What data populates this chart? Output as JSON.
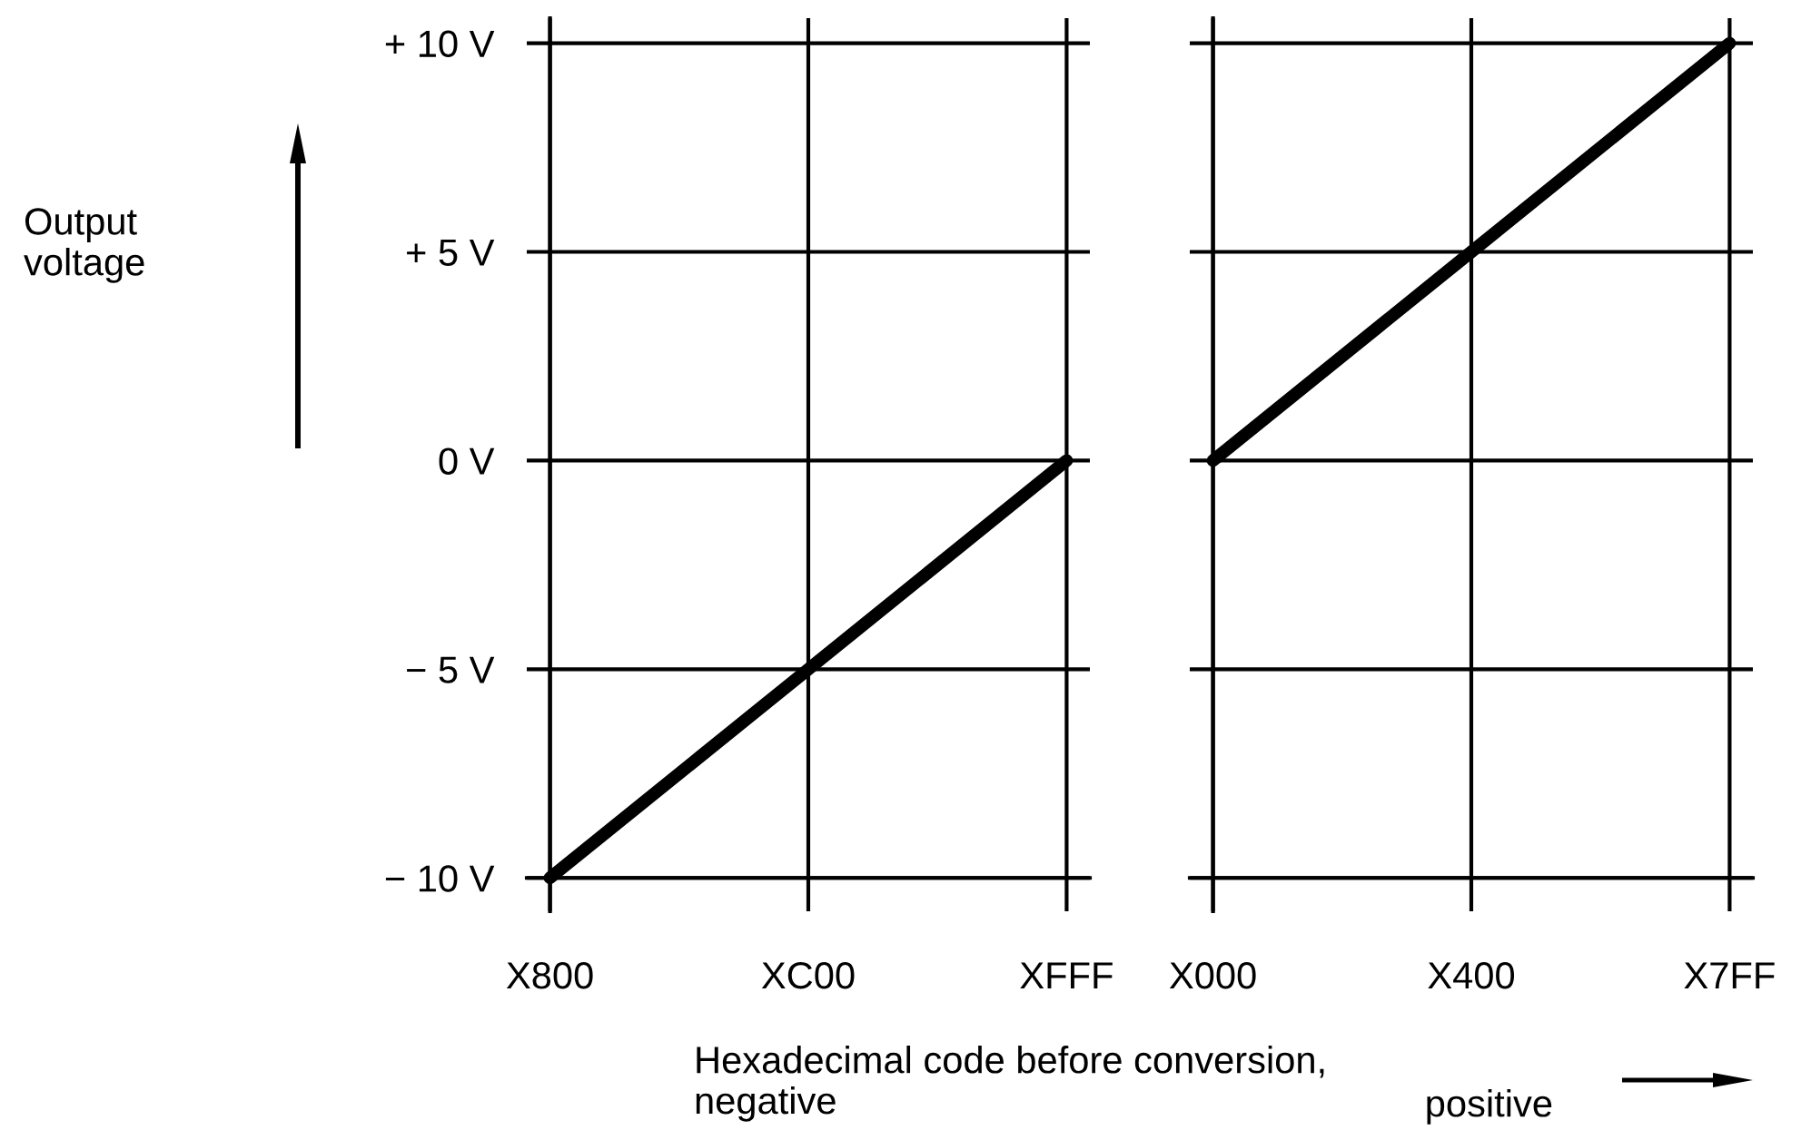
{
  "chart_data": [
    {
      "type": "line",
      "ylabel": "Output\nvoltage",
      "xlabel": "Hexadecimal code before conversion,\nnegative",
      "categories": [
        "X800",
        "XC00",
        "XFFF"
      ],
      "series": [
        {
          "color": "#000000",
          "values": [
            -10,
            -5,
            0
          ]
        }
      ],
      "ylim": [
        -10.8,
        10.6
      ],
      "yticks": [
        {
          "value": -10,
          "label": "− 10 V"
        },
        {
          "value": -5,
          "label": "− 5 V"
        },
        {
          "value": 0,
          "label": "0 V"
        },
        {
          "value": 5,
          "label": "+ 5 V"
        },
        {
          "value": 10,
          "label": "+ 10 V"
        }
      ],
      "grid": true,
      "line_style": "solid"
    },
    {
      "type": "line",
      "xlabel": "positive",
      "categories": [
        "X000",
        "X400",
        "X7FF"
      ],
      "series": [
        {
          "color": "#000000",
          "values": [
            0,
            5,
            10
          ]
        }
      ],
      "ylim": [
        -10.8,
        10.6
      ],
      "yticks": [
        -10,
        -5,
        0,
        5,
        10
      ],
      "grid": true,
      "line_style": "solid",
      "tick_labels": "x"
    }
  ]
}
